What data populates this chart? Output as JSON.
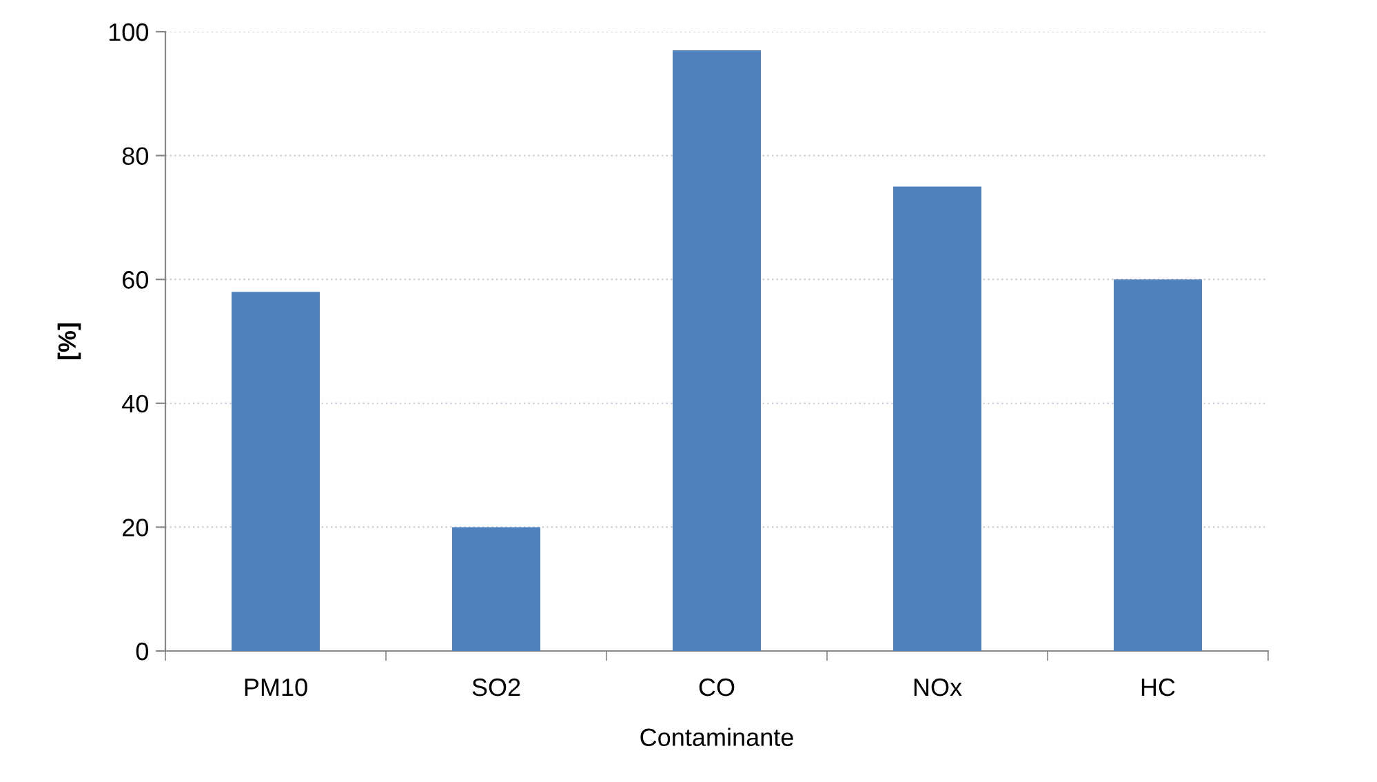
{
  "chart_data": {
    "type": "bar",
    "xlabel": "Contaminante",
    "ylabel": "[%]",
    "categories": [
      "PM10",
      "SO2",
      "CO",
      "NOx",
      "HC"
    ],
    "values": [
      58,
      20,
      97,
      75,
      60
    ],
    "color": "#4f81bd",
    "ylim": [
      0,
      100
    ],
    "yticks": [
      0,
      20,
      40,
      60,
      80,
      100
    ],
    "grid": "y",
    "legend": false
  }
}
